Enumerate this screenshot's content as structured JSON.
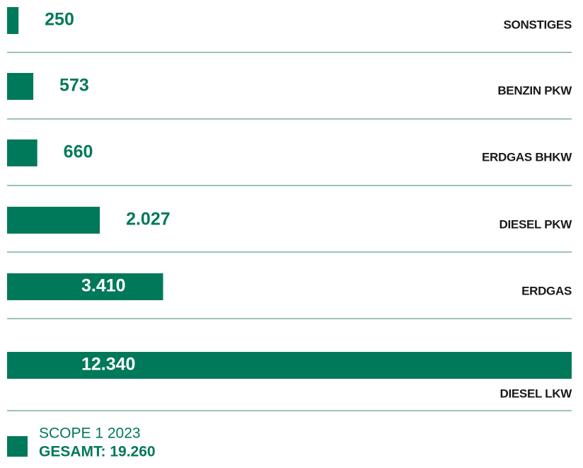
{
  "chart_data": {
    "type": "bar",
    "orientation": "horizontal",
    "categories": [
      "SONSTIGES",
      "BENZIN PKW",
      "ERDGAS BHKW",
      "DIESEL PKW",
      "ERDGAS",
      "DIESEL LKW"
    ],
    "values": [
      250,
      573,
      660,
      2027,
      3410,
      12340
    ],
    "value_labels": [
      "250",
      "573",
      "660",
      "2.027",
      "3.410",
      "12.340"
    ],
    "color": "#00795a",
    "legend": {
      "name": "SCOPE 1 2023",
      "total_label": "GESAMT: 19.260"
    }
  }
}
